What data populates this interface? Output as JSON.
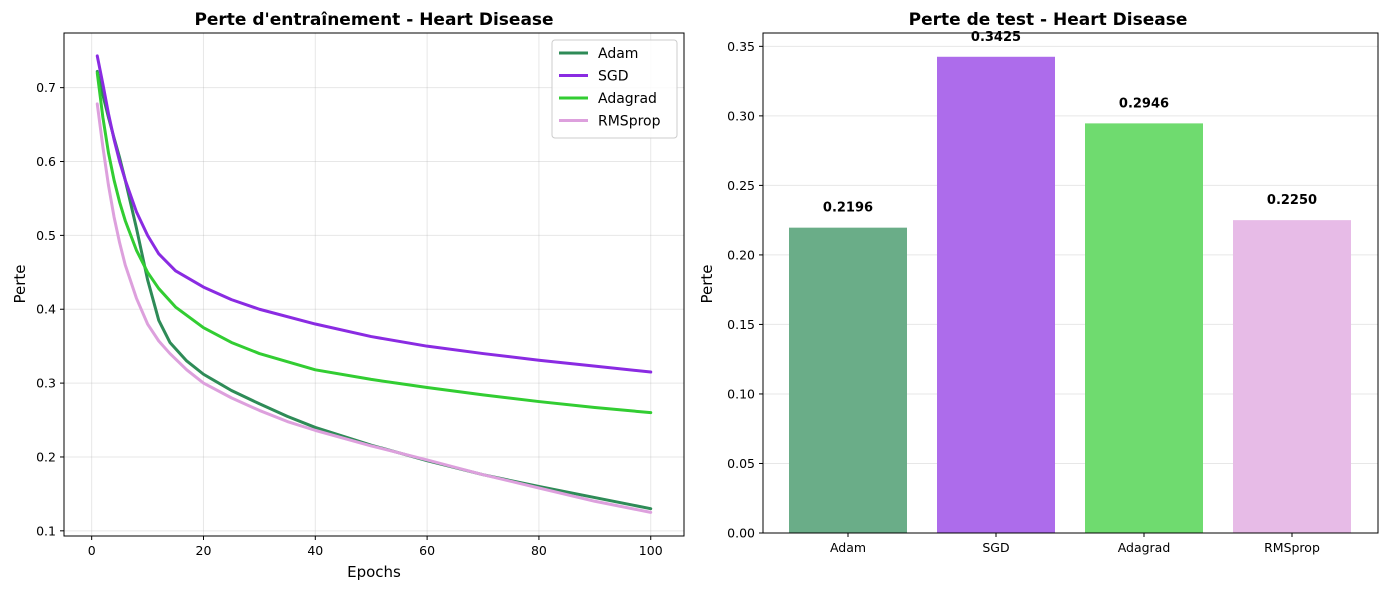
{
  "chart_data": [
    {
      "type": "line",
      "title": "Perte d'entraînement - Heart Disease",
      "xlabel": "Epochs",
      "ylabel": "Perte",
      "xlim": [
        -4.95,
        105.95
      ],
      "ylim": [
        0.093,
        0.774
      ],
      "xticks": [
        0,
        20,
        40,
        60,
        80,
        100
      ],
      "yticks": [
        0.1,
        0.2,
        0.3,
        0.4,
        0.5,
        0.6,
        0.7
      ],
      "grid": true,
      "legend_position": "top-right",
      "series": [
        {
          "name": "Adam",
          "color": "#2e8b57",
          "x": [
            1,
            2,
            3,
            4,
            5,
            6,
            8,
            10,
            12,
            14,
            17,
            20,
            25,
            30,
            35,
            40,
            50,
            60,
            70,
            80,
            90,
            100
          ],
          "y": [
            0.722,
            0.69,
            0.66,
            0.632,
            0.605,
            0.575,
            0.51,
            0.44,
            0.385,
            0.355,
            0.33,
            0.312,
            0.29,
            0.272,
            0.255,
            0.24,
            0.216,
            0.195,
            0.176,
            0.16,
            0.145,
            0.13
          ]
        },
        {
          "name": "SGD",
          "color": "#8a2be2",
          "x": [
            1,
            2,
            3,
            4,
            5,
            6,
            8,
            10,
            12,
            15,
            20,
            25,
            30,
            40,
            50,
            60,
            70,
            80,
            90,
            100
          ],
          "y": [
            0.743,
            0.705,
            0.665,
            0.63,
            0.6,
            0.575,
            0.532,
            0.5,
            0.475,
            0.452,
            0.43,
            0.413,
            0.4,
            0.38,
            0.363,
            0.35,
            0.34,
            0.331,
            0.323,
            0.315
          ]
        },
        {
          "name": "Adagrad",
          "color": "#32cd32",
          "x": [
            1,
            2,
            3,
            4,
            5,
            6,
            8,
            10,
            12,
            15,
            20,
            25,
            30,
            40,
            50,
            60,
            70,
            80,
            90,
            100
          ],
          "y": [
            0.72,
            0.66,
            0.612,
            0.575,
            0.545,
            0.52,
            0.48,
            0.45,
            0.428,
            0.403,
            0.375,
            0.355,
            0.34,
            0.318,
            0.305,
            0.294,
            0.284,
            0.275,
            0.267,
            0.26
          ]
        },
        {
          "name": "RMSprop",
          "color": "#dda0dd",
          "x": [
            1,
            2,
            3,
            4,
            5,
            6,
            8,
            10,
            12,
            14,
            17,
            20,
            25,
            30,
            35,
            40,
            50,
            60,
            70,
            80,
            90,
            100
          ],
          "y": [
            0.678,
            0.62,
            0.568,
            0.525,
            0.49,
            0.46,
            0.415,
            0.38,
            0.357,
            0.34,
            0.318,
            0.3,
            0.28,
            0.263,
            0.248,
            0.236,
            0.215,
            0.196,
            0.176,
            0.158,
            0.14,
            0.125
          ]
        }
      ]
    },
    {
      "type": "bar",
      "title": "Perte de test - Heart Disease",
      "xlabel": "",
      "ylabel": "Perte",
      "ylim": [
        0,
        0.3596
      ],
      "yticks": [
        0.0,
        0.05,
        0.1,
        0.15,
        0.2,
        0.25,
        0.3,
        0.35
      ],
      "ytick_labels": [
        "0.00",
        "0.05",
        "0.10",
        "0.15",
        "0.20",
        "0.25",
        "0.30",
        "0.35"
      ],
      "grid": true,
      "categories": [
        "Adam",
        "SGD",
        "Adagrad",
        "RMSprop"
      ],
      "values": [
        0.2196,
        0.3425,
        0.2946,
        0.225
      ],
      "value_labels": [
        "0.2196",
        "0.3425",
        "0.2946",
        "0.2250"
      ],
      "colors": [
        "#6aad88",
        "#ad6ceb",
        "#6fdb6f",
        "#e7bbe7"
      ]
    }
  ]
}
